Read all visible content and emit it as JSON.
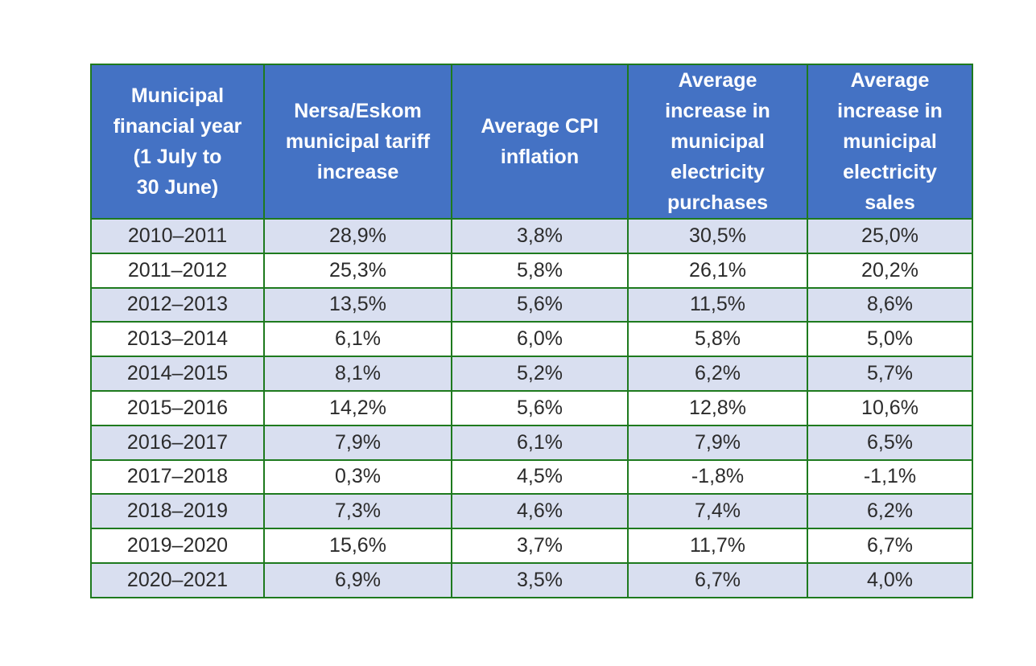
{
  "chart_data": {
    "type": "table",
    "columns": [
      "Municipal\nfinancial year\n(1 July to\n30 June)",
      "Nersa/Eskom\nmunicipal tariff\nincrease",
      "Average CPI\ninflation",
      "Average\nincrease in\nmunicipal\nelectricity\npurchases",
      "Average\nincrease in\nmunicipal\nelectricity\nsales"
    ],
    "rows": [
      [
        "2010–2011",
        "28,9%",
        "3,8%",
        "30,5%",
        "25,0%"
      ],
      [
        "2011–2012",
        "25,3%",
        "5,8%",
        "26,1%",
        "20,2%"
      ],
      [
        "2012–2013",
        "13,5%",
        "5,6%",
        "11,5%",
        "8,6%"
      ],
      [
        "2013–2014",
        "6,1%",
        "6,0%",
        "5,8%",
        "5,0%"
      ],
      [
        "2014–2015",
        "8,1%",
        "5,2%",
        "6,2%",
        "5,7%"
      ],
      [
        "2015–2016",
        "14,2%",
        "5,6%",
        "12,8%",
        "10,6%"
      ],
      [
        "2016–2017",
        "7,9%",
        "6,1%",
        "7,9%",
        "6,5%"
      ],
      [
        "2017–2018",
        "0,3%",
        "4,5%",
        "-1,8%",
        "-1,1%"
      ],
      [
        "2018–2019",
        "7,3%",
        "4,6%",
        "7,4%",
        "6,2%"
      ],
      [
        "2019–2020",
        "15,6%",
        "3,7%",
        "11,7%",
        "6,7%"
      ],
      [
        "2020–2021",
        "6,9%",
        "3,5%",
        "6,7%",
        "4,0%"
      ]
    ],
    "header_color": "#4472c4",
    "band_color": "#d9dff0",
    "border_color": "#1e7a1e"
  }
}
